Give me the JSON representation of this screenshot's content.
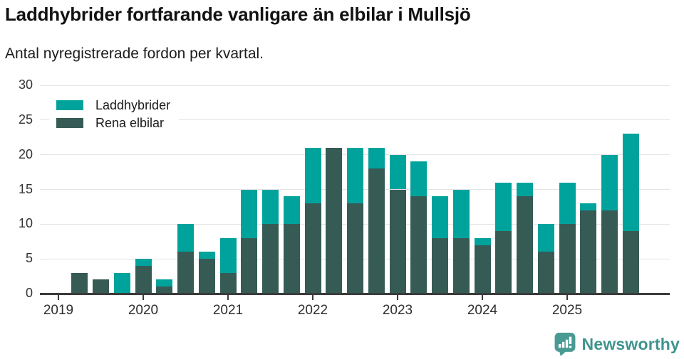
{
  "legend": {
    "items": [
      {
        "label": "Laddhybrider",
        "color": "#00a39c"
      },
      {
        "label": "Rena elbilar",
        "color": "#365b55"
      }
    ]
  },
  "chart_data": {
    "type": "bar",
    "stacked": true,
    "title": "Laddhybrider fortfarande vanligare än elbilar i Mullsjö",
    "subtitle": "Antal nyregistrerade fordon per kvartal.",
    "x_quarters": [
      "2019 Q1",
      "2019 Q2",
      "2019 Q3",
      "2019 Q4",
      "2020 Q1",
      "2020 Q2",
      "2020 Q3",
      "2020 Q4",
      "2021 Q1",
      "2021 Q2",
      "2021 Q3",
      "2021 Q4",
      "2022 Q1",
      "2022 Q2",
      "2022 Q3",
      "2022 Q4",
      "2023 Q1",
      "2023 Q2",
      "2023 Q3",
      "2023 Q4",
      "2024 Q1",
      "2024 Q2",
      "2024 Q3",
      "2024 Q4",
      "2025 Q1",
      "2025 Q2",
      "2025 Q3",
      "2025 Q4"
    ],
    "series": [
      {
        "name": "Rena elbilar",
        "color": "#365b55",
        "values": [
          0,
          3,
          2,
          0,
          4,
          1,
          6,
          5,
          3,
          8,
          10,
          10,
          13,
          21,
          13,
          18,
          15,
          14,
          8,
          8,
          7,
          9,
          14,
          6,
          10,
          12,
          12,
          9
        ]
      },
      {
        "name": "Laddhybrider",
        "color": "#00a39c",
        "values": [
          0,
          0,
          0,
          3,
          1,
          1,
          4,
          1,
          5,
          7,
          5,
          4,
          8,
          0,
          8,
          3,
          5,
          5,
          6,
          7,
          1,
          7,
          2,
          4,
          6,
          1,
          8,
          14
        ]
      }
    ],
    "stack_order_bottom_to_top": [
      "Rena elbilar",
      "Laddhybrider"
    ],
    "totals": [
      0,
      3,
      2,
      3,
      5,
      2,
      10,
      6,
      8,
      15,
      15,
      14,
      21,
      21,
      21,
      21,
      20,
      19,
      14,
      15,
      8,
      16,
      16,
      10,
      16,
      13,
      20,
      23
    ],
    "yticks": [
      0,
      5,
      10,
      15,
      20,
      25,
      30
    ],
    "ylim": [
      0,
      30
    ],
    "x_ticks": [
      {
        "label": "2019",
        "index": 0
      },
      {
        "label": "2020",
        "index": 4
      },
      {
        "label": "2021",
        "index": 8
      },
      {
        "label": "2022",
        "index": 12
      },
      {
        "label": "2023",
        "index": 16
      },
      {
        "label": "2024",
        "index": 20
      },
      {
        "label": "2025",
        "index": 24
      }
    ],
    "grid": "horizontal",
    "legend_position": "top-left-inside"
  },
  "branding": {
    "logo_text": "Newsworthy",
    "logo_color": "#3f948e",
    "logo_icon": "bar-chart-speech-bubble-icon"
  }
}
